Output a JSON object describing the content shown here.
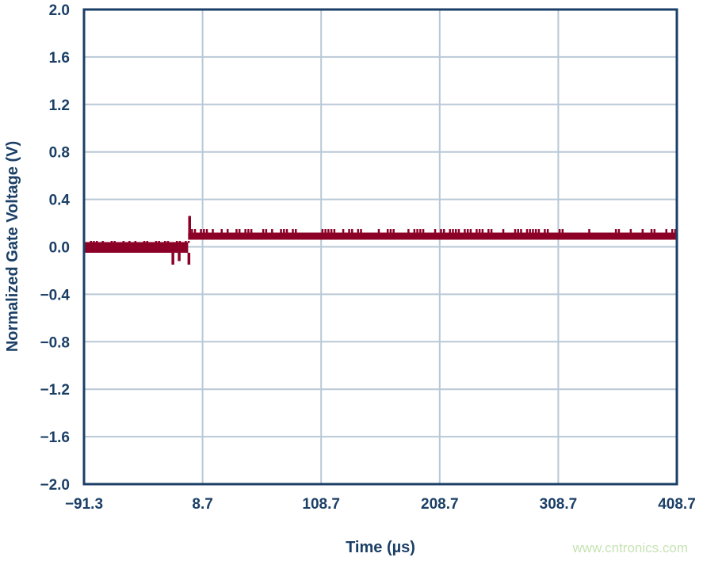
{
  "chart_data": {
    "type": "line",
    "title": "",
    "xlabel": "Time (µs)",
    "ylabel": "Normalized Gate Voltage (V)",
    "xlim": [
      -91.3,
      408.7
    ],
    "ylim": [
      -2.0,
      2.0
    ],
    "xticks": [
      "−91.3",
      "8.7",
      "108.7",
      "208.7",
      "308.7",
      "408.7"
    ],
    "xtick_values": [
      -91.3,
      8.7,
      108.7,
      208.7,
      308.7,
      408.7
    ],
    "yticks": [
      "2.0",
      "1.6",
      "1.2",
      "0.8",
      "0.4",
      "0.0",
      "−0.4",
      "−0.8",
      "−1.2",
      "−1.6",
      "−2.0"
    ],
    "ytick_values": [
      2.0,
      1.6,
      1.2,
      0.8,
      0.4,
      0.0,
      -0.4,
      -0.8,
      -1.2,
      -1.6,
      -2.0
    ],
    "grid": true,
    "series_color": "#8c0027",
    "series": [
      {
        "bands": [
          {
            "t_start": -91.3,
            "t_end": -3.5,
            "low": -0.05,
            "high": 0.04,
            "noise_high": 0.05
          },
          {
            "t_start": -3.5,
            "t_end": 408.7,
            "low": 0.06,
            "high": 0.12,
            "noise_high": 0.15
          }
        ],
        "spikes": [
          {
            "t": -16.5,
            "v": -0.15
          },
          {
            "t": -11.2,
            "v": -0.12
          },
          {
            "t": -3.0,
            "v": -0.15
          },
          {
            "t": -2.4,
            "v": 0.26
          }
        ]
      }
    ]
  },
  "watermark": "www.cntronics.com"
}
